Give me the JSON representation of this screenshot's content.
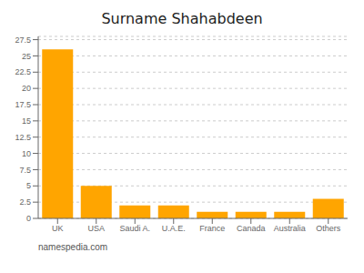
{
  "chart_data": {
    "type": "bar",
    "title": "Surname Shahabdeen",
    "categories": [
      "UK",
      "USA",
      "Saudi A.",
      "U.A.E.",
      "France",
      "Canada",
      "Australia",
      "Others"
    ],
    "values": [
      26,
      5,
      2,
      2,
      1,
      1,
      1,
      3
    ],
    "color": "#FFA500",
    "ylim": [
      0,
      28
    ],
    "yticks": [
      0,
      2.5,
      5,
      7.5,
      10,
      12.5,
      15,
      17.5,
      20,
      22.5,
      25,
      27.5
    ],
    "grid": true,
    "annotation": "namespedia.com"
  }
}
